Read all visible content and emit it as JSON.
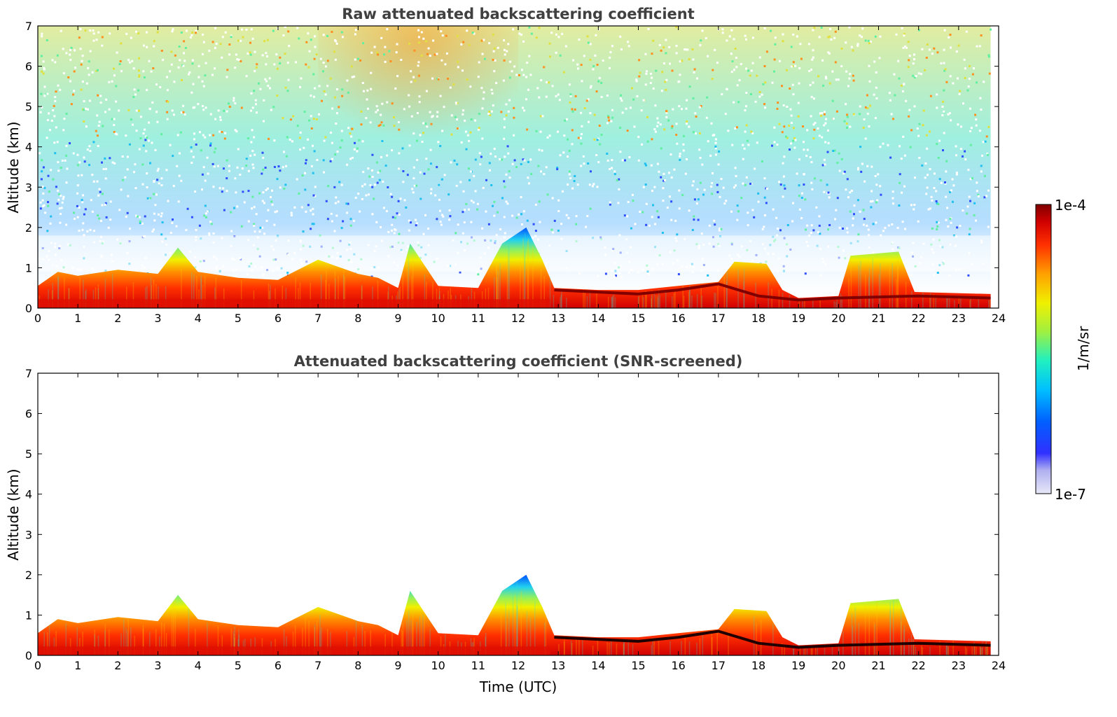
{
  "chart_data": [
    {
      "type": "heatmap",
      "title": "Raw attenuated backscattering coefficient",
      "xlabel": "",
      "ylabel": "Altitude (km)",
      "xlim": [
        0,
        24
      ],
      "ylim": [
        0,
        7
      ],
      "xticks": [
        "0",
        "1",
        "2",
        "3",
        "4",
        "5",
        "6",
        "7",
        "8",
        "9",
        "10",
        "11",
        "12",
        "13",
        "14",
        "15",
        "16",
        "17",
        "18",
        "19",
        "20",
        "21",
        "22",
        "23",
        "24"
      ],
      "yticks": [
        "0",
        "1",
        "2",
        "3",
        "4",
        "5",
        "6",
        "7"
      ],
      "data_end_time": 23.8,
      "boundary_layer_top_km": [
        [
          0,
          0.55
        ],
        [
          0.5,
          0.9
        ],
        [
          1,
          0.8
        ],
        [
          2,
          0.95
        ],
        [
          3,
          0.85
        ],
        [
          3.5,
          1.5
        ],
        [
          4,
          0.9
        ],
        [
          5,
          0.75
        ],
        [
          6,
          0.7
        ],
        [
          7,
          1.2
        ],
        [
          8,
          0.85
        ],
        [
          8.5,
          0.75
        ],
        [
          9,
          0.5
        ],
        [
          9.3,
          1.6
        ],
        [
          10,
          0.55
        ],
        [
          11,
          0.5
        ],
        [
          11.6,
          1.6
        ],
        [
          12.2,
          2.0
        ],
        [
          12.6,
          1.2
        ],
        [
          12.9,
          0.5
        ],
        [
          14,
          0.45
        ],
        [
          15,
          0.45
        ],
        [
          16,
          0.55
        ],
        [
          17,
          0.65
        ],
        [
          17.4,
          1.15
        ],
        [
          18.2,
          1.1
        ],
        [
          18.6,
          0.45
        ],
        [
          19,
          0.25
        ],
        [
          20,
          0.3
        ],
        [
          20.3,
          1.3
        ],
        [
          21.5,
          1.4
        ],
        [
          21.9,
          0.4
        ],
        [
          23.8,
          0.35
        ]
      ],
      "dense_layer_km": [
        [
          12.9,
          0.45
        ],
        [
          15,
          0.35
        ],
        [
          16,
          0.45
        ],
        [
          17,
          0.6
        ],
        [
          18,
          0.3
        ],
        [
          19,
          0.2
        ],
        [
          20,
          0.25
        ],
        [
          22,
          0.3
        ],
        [
          23.8,
          0.25
        ]
      ],
      "noise_present": true
    },
    {
      "type": "heatmap",
      "title": "Attenuated backscattering coefficient (SNR-screened)",
      "xlabel": "Time (UTC)",
      "ylabel": "Altitude (km)",
      "xlim": [
        0,
        24
      ],
      "ylim": [
        0,
        7
      ],
      "xticks": [
        "0",
        "1",
        "2",
        "3",
        "4",
        "5",
        "6",
        "7",
        "8",
        "9",
        "10",
        "11",
        "12",
        "13",
        "14",
        "15",
        "16",
        "17",
        "18",
        "19",
        "20",
        "21",
        "22",
        "23",
        "24"
      ],
      "yticks": [
        "0",
        "1",
        "2",
        "3",
        "4",
        "5",
        "6",
        "7"
      ],
      "data_end_time": 23.8,
      "noise_present": false
    }
  ],
  "colorbar": {
    "label": "1/m/sr",
    "max_label": "1e-4",
    "min_label": "1e-7",
    "colors": [
      "#e6e6f5",
      "#c8c8f0",
      "#a0a0f0",
      "#6060ff",
      "#0000ff",
      "#0050ff",
      "#00a0ff",
      "#00e0e0",
      "#40f0a0",
      "#a0f040",
      "#f0f000",
      "#ffb000",
      "#ff6000",
      "#ff2000",
      "#d00000",
      "#800000"
    ]
  }
}
